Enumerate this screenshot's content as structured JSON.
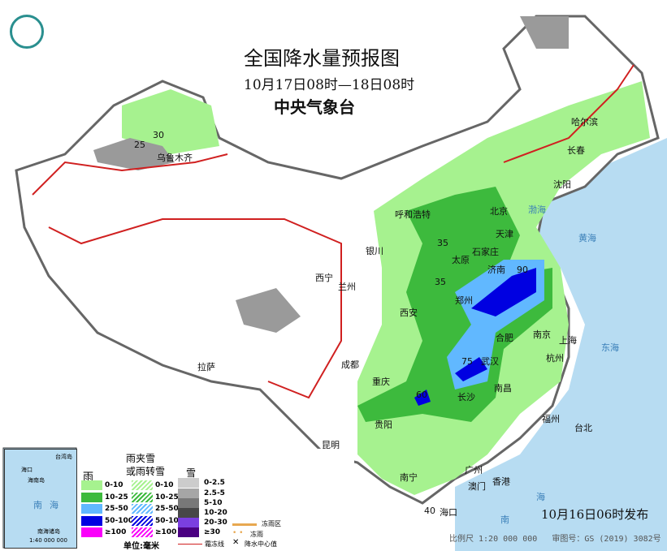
{
  "header": {
    "title": "全国降水量预报图",
    "period": "10月17日08时—18日08时",
    "issuer": "中央气象台"
  },
  "cities": [
    "乌鲁木齐",
    "哈尔滨",
    "长春",
    "沈阳",
    "呼和浩特",
    "北京",
    "天津",
    "石家庄",
    "太原",
    "济南",
    "银川",
    "西宁",
    "兰州",
    "郑州",
    "西安",
    "合肥",
    "南京",
    "上海",
    "武汉",
    "杭州",
    "成都",
    "重庆",
    "长沙",
    "南昌",
    "拉萨",
    "贵阳",
    "昆明",
    "福州",
    "台北",
    "南宁",
    "广州",
    "澳门",
    "香港",
    "海口"
  ],
  "precip_centers": [
    "30",
    "25",
    "35",
    "35",
    "90",
    "75",
    "60",
    "40"
  ],
  "seas": [
    "渤海",
    "黄海",
    "东海",
    "南",
    "海"
  ],
  "legend": {
    "rain": {
      "title": "雨",
      "items": [
        "0-10",
        "10-25",
        "25-50",
        "50-100",
        "≥100"
      ],
      "colors": [
        "#a6f28f",
        "#3dba3d",
        "#61b8ff",
        "#0000e1",
        "#fa00fa"
      ]
    },
    "sleet": {
      "title_1": "雨夹雪",
      "title_2": "或雨转雪",
      "items": [
        "0-10",
        "10-25",
        "25-50",
        "50-100",
        "≥100"
      ]
    },
    "snow": {
      "title": "雪",
      "items": [
        "0-2.5",
        "2.5-5",
        "5-10",
        "10-20",
        "20-30",
        "≥30"
      ],
      "colors": [
        "#cccccc",
        "#a6a6a6",
        "#787878",
        "#474747",
        "#7b3fe0",
        "#4b0082"
      ]
    },
    "freezing_rain_area": "冻雨区",
    "freezing_rain": "冻雨",
    "frost_line": "霜冻线",
    "center_value": "降水中心值",
    "unit": "单位:毫米"
  },
  "inset": {
    "labels": [
      "台湾岛",
      "海口",
      "海南岛",
      "南",
      "海"
    ],
    "name": "南海诸岛",
    "scale": "1:40 000 000"
  },
  "footer": {
    "published": "10月16日06时发布",
    "scale": "比例尺 1:20 000 000",
    "map_no": "审图号：GS (2019) 3082号"
  }
}
